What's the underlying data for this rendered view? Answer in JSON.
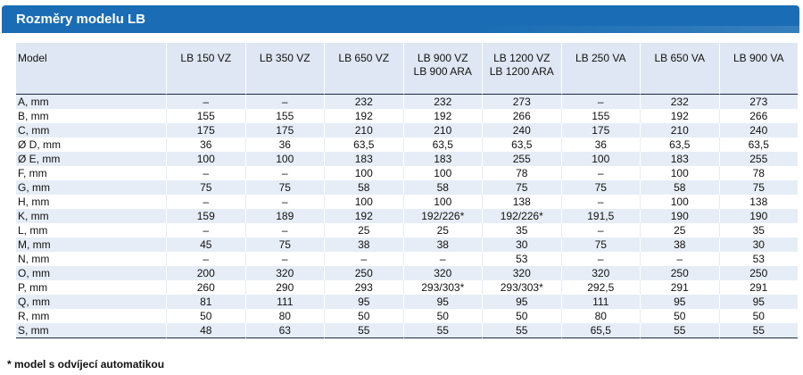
{
  "title": "Rozměry modelu LB",
  "table": {
    "headers": [
      [
        "Model"
      ],
      [
        "LB 150 VZ"
      ],
      [
        "LB 350 VZ"
      ],
      [
        "LB 650 VZ"
      ],
      [
        "LB 900 VZ",
        "LB 900 ARA"
      ],
      [
        "LB 1200 VZ",
        "LB 1200 ARA"
      ],
      [
        "LB 250 VA"
      ],
      [
        "LB 650 VA"
      ],
      [
        "LB 900 VA"
      ]
    ],
    "rows": [
      [
        "A, mm",
        "–",
        "–",
        "232",
        "232",
        "273",
        "–",
        "232",
        "273"
      ],
      [
        "B, mm",
        "155",
        "155",
        "192",
        "192",
        "266",
        "155",
        "192",
        "266"
      ],
      [
        "C, mm",
        "175",
        "175",
        "210",
        "210",
        "240",
        "175",
        "210",
        "240"
      ],
      [
        "Ø D, mm",
        "36",
        "36",
        "63,5",
        "63,5",
        "63,5",
        "36",
        "63,5",
        "63,5"
      ],
      [
        "Ø E, mm",
        "100",
        "100",
        "183",
        "183",
        "255",
        "100",
        "183",
        "255"
      ],
      [
        "F, mm",
        "–",
        "–",
        "100",
        "100",
        "78",
        "–",
        "100",
        "78"
      ],
      [
        "G, mm",
        "75",
        "75",
        "58",
        "58",
        "75",
        "75",
        "58",
        "75"
      ],
      [
        "H, mm",
        "–",
        "–",
        "100",
        "100",
        "138",
        "–",
        "100",
        "138"
      ],
      [
        "K, mm",
        "159",
        "189",
        "192",
        "192/226*",
        "192/226*",
        "191,5",
        "190",
        "190"
      ],
      [
        "L, mm",
        "–",
        "–",
        "25",
        "25",
        "35",
        "–",
        "25",
        "35"
      ],
      [
        "M, mm",
        "45",
        "75",
        "38",
        "38",
        "30",
        "75",
        "38",
        "30"
      ],
      [
        "N, mm",
        "–",
        "–",
        "–",
        "–",
        "53",
        "–",
        "–",
        "53"
      ],
      [
        "O, mm",
        "200",
        "320",
        "250",
        "320",
        "320",
        "320",
        "250",
        "250"
      ],
      [
        "P, mm",
        "260",
        "290",
        "293",
        "293/303*",
        "293/303*",
        "292,5",
        "291",
        "291"
      ],
      [
        "Q, mm",
        "81",
        "111",
        "95",
        "95",
        "95",
        "111",
        "95",
        "95"
      ],
      [
        "R, mm",
        "50",
        "80",
        "50",
        "50",
        "50",
        "80",
        "50",
        "50"
      ],
      [
        "S, mm",
        "48",
        "63",
        "55",
        "55",
        "55",
        "65,5",
        "55",
        "55"
      ]
    ]
  },
  "footnote": "* model s odvíjecí automatikou"
}
